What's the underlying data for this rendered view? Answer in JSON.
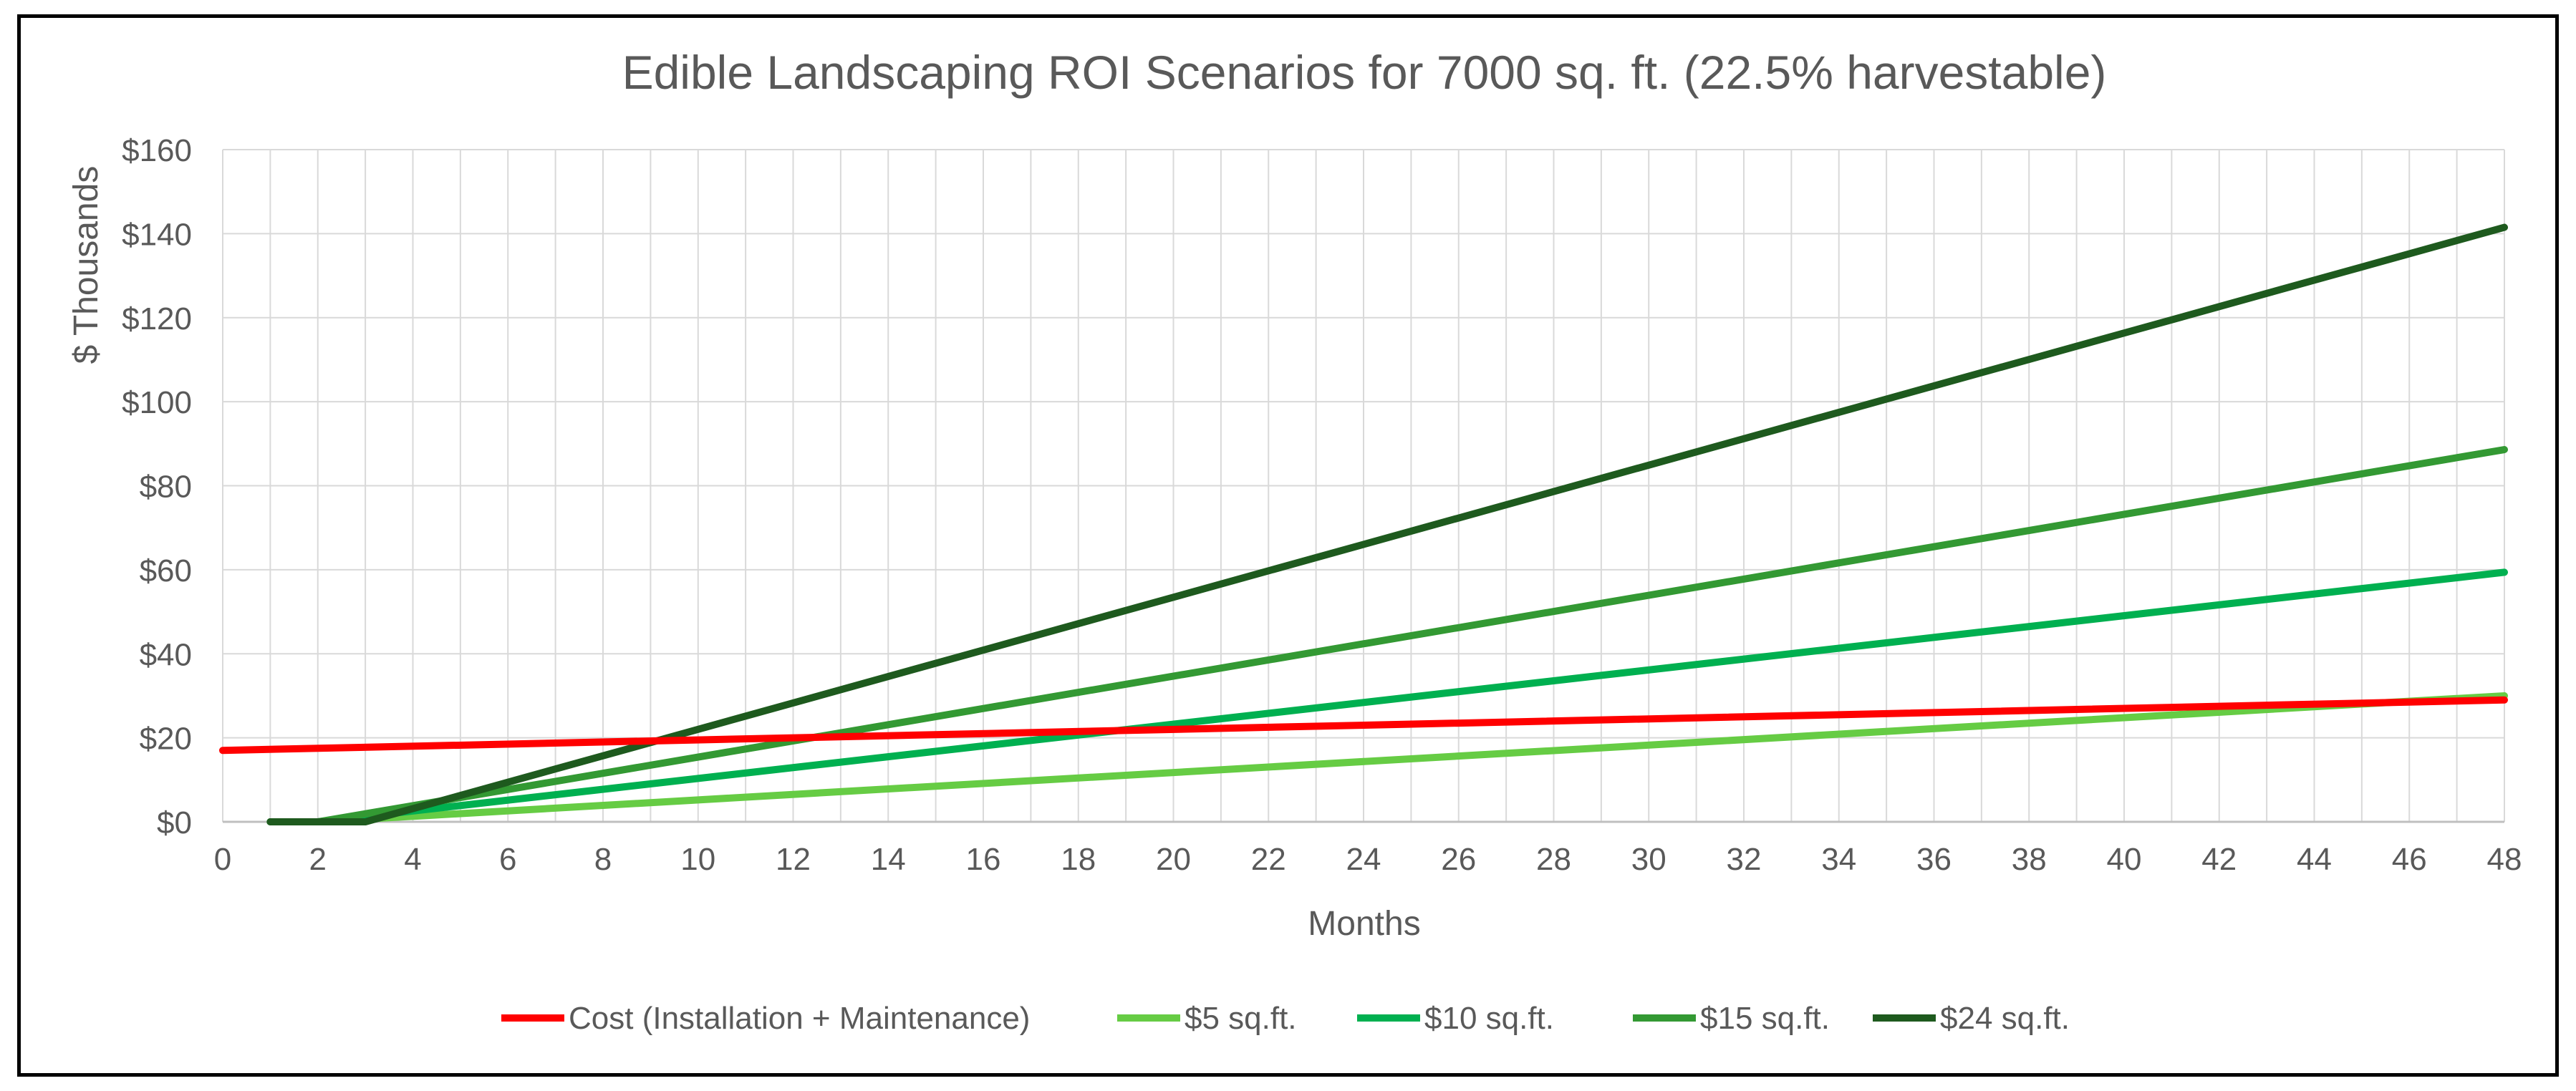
{
  "chart_data": {
    "type": "line",
    "title": "Edible Landscaping ROI Scenarios for 7000 sq. ft. (22.5% harvestable)",
    "xlabel": "Months",
    "ylabel": "$ Thousands",
    "xlim": [
      0,
      48
    ],
    "ylim": [
      0,
      160
    ],
    "x_ticks": [
      "0",
      "2",
      "4",
      "6",
      "8",
      "10",
      "12",
      "14",
      "16",
      "18",
      "20",
      "22",
      "24",
      "26",
      "28",
      "30",
      "32",
      "34",
      "36",
      "38",
      "40",
      "42",
      "44",
      "46",
      "48"
    ],
    "y_ticks": [
      "$0",
      "$20",
      "$40",
      "$60",
      "$80",
      "$100",
      "$120",
      "$140",
      "$160"
    ],
    "grid": true,
    "legend_position": "bottom",
    "series": [
      {
        "name": "Cost (Installation + Maintenance)",
        "color": "#ff0000",
        "x": [
          0,
          48
        ],
        "y": [
          17,
          29
        ]
      },
      {
        "name": "$5 sq.ft.",
        "color": "#66cc44",
        "x": [
          1,
          2,
          48
        ],
        "y": [
          0,
          0,
          30
        ]
      },
      {
        "name": "$10 sq.ft.",
        "color": "#00b050",
        "x": [
          1,
          2,
          48
        ],
        "y": [
          0,
          0,
          59.4
        ]
      },
      {
        "name": "$15 sq.ft.",
        "color": "#339933",
        "x": [
          1,
          2,
          48
        ],
        "y": [
          0,
          0,
          88.6
        ]
      },
      {
        "name": "$24 sq.ft.",
        "color": "#1e5a1e",
        "x": [
          1,
          3,
          48
        ],
        "y": [
          0,
          0,
          141.5
        ]
      }
    ]
  }
}
